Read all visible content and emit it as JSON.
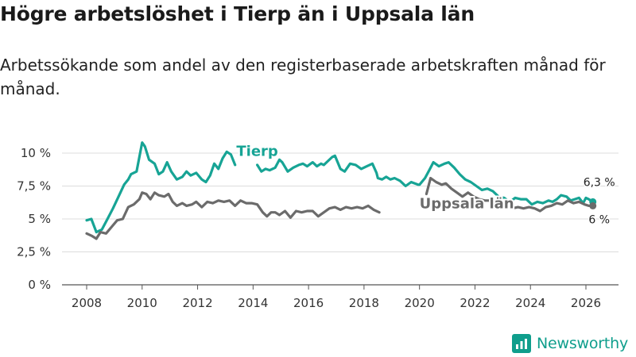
{
  "title": "Högre arbetslöshet i Tierp än i Uppsala län",
  "subtitle": "Arbetssökande som andel av den registerbaserade arbetskraften månad för månad.",
  "brand": {
    "name": "Newsworthy",
    "color": "#0f9e8c"
  },
  "chart_data": {
    "type": "line",
    "title": "Högre arbetslöshet i Tierp än i Uppsala län",
    "xlabel": "",
    "ylabel": "",
    "xlim": [
      2007.6,
      2026.7
    ],
    "ylim": [
      0,
      10.5
    ],
    "grid": true,
    "y_ticks": [
      {
        "value": 0,
        "label": "0 %"
      },
      {
        "value": 2.5,
        "label": "2,5 %"
      },
      {
        "value": 5,
        "label": "5 %"
      },
      {
        "value": 7.5,
        "label": "7,5 %"
      },
      {
        "value": 10,
        "label": "10 %"
      }
    ],
    "x_ticks": [
      {
        "value": 2008,
        "label": "2008"
      },
      {
        "value": 2010,
        "label": "2010"
      },
      {
        "value": 2012,
        "label": "2012"
      },
      {
        "value": 2014,
        "label": "2014"
      },
      {
        "value": 2016,
        "label": "2016"
      },
      {
        "value": 2018,
        "label": "2018"
      },
      {
        "value": 2020,
        "label": "2020"
      },
      {
        "value": 2022,
        "label": "2022"
      },
      {
        "value": 2024,
        "label": "2024"
      },
      {
        "value": 2026,
        "label": "2026"
      }
    ],
    "series": [
      {
        "name": "Tierp",
        "color": "#17a495",
        "label_year": 2013.4,
        "label_value": 9.8,
        "end_label": "6,3 %",
        "end_value": 6.3,
        "points": [
          [
            2008.0,
            4.9
          ],
          [
            2008.17,
            5.0
          ],
          [
            2008.35,
            4.0
          ],
          [
            2008.55,
            4.2
          ],
          [
            2008.75,
            5.0
          ],
          [
            2008.95,
            5.8
          ],
          [
            2009.15,
            6.7
          ],
          [
            2009.35,
            7.6
          ],
          [
            2009.5,
            8.0
          ],
          [
            2009.6,
            8.4
          ],
          [
            2009.8,
            8.6
          ],
          [
            2010.0,
            10.8
          ],
          [
            2010.1,
            10.5
          ],
          [
            2010.25,
            9.5
          ],
          [
            2010.45,
            9.2
          ],
          [
            2010.6,
            8.4
          ],
          [
            2010.75,
            8.6
          ],
          [
            2010.9,
            9.3
          ],
          [
            2011.05,
            8.6
          ],
          [
            2011.25,
            8.0
          ],
          [
            2011.45,
            8.2
          ],
          [
            2011.6,
            8.6
          ],
          [
            2011.75,
            8.3
          ],
          [
            2011.95,
            8.5
          ],
          [
            2012.15,
            8.0
          ],
          [
            2012.3,
            7.8
          ],
          [
            2012.45,
            8.3
          ],
          [
            2012.6,
            9.2
          ],
          [
            2012.75,
            8.8
          ],
          [
            2012.9,
            9.6
          ],
          [
            2013.05,
            10.1
          ],
          [
            2013.2,
            9.9
          ],
          [
            2013.35,
            9.1
          ],
          [
            2014.15,
            9.1
          ],
          [
            2014.3,
            8.6
          ],
          [
            2014.45,
            8.8
          ],
          [
            2014.6,
            8.7
          ],
          [
            2014.8,
            8.9
          ],
          [
            2014.95,
            9.5
          ],
          [
            2015.05,
            9.3
          ],
          [
            2015.25,
            8.6
          ],
          [
            2015.45,
            8.9
          ],
          [
            2015.65,
            9.1
          ],
          [
            2015.8,
            9.2
          ],
          [
            2015.95,
            9.0
          ],
          [
            2016.15,
            9.3
          ],
          [
            2016.3,
            9.0
          ],
          [
            2016.45,
            9.2
          ],
          [
            2016.55,
            9.1
          ],
          [
            2016.7,
            9.4
          ],
          [
            2016.85,
            9.7
          ],
          [
            2016.95,
            9.8
          ],
          [
            2017.15,
            8.8
          ],
          [
            2017.3,
            8.6
          ],
          [
            2017.5,
            9.2
          ],
          [
            2017.7,
            9.1
          ],
          [
            2017.9,
            8.8
          ],
          [
            2018.1,
            9.0
          ],
          [
            2018.3,
            9.2
          ],
          [
            2018.45,
            8.5
          ],
          [
            2018.5,
            8.1
          ],
          [
            2018.65,
            8.0
          ],
          [
            2018.8,
            8.2
          ],
          [
            2018.95,
            8.0
          ],
          [
            2019.1,
            8.1
          ],
          [
            2019.3,
            7.9
          ],
          [
            2019.5,
            7.5
          ],
          [
            2019.7,
            7.8
          ],
          [
            2019.95,
            7.6
          ],
          [
            2020.0,
            7.6
          ],
          [
            2020.2,
            8.1
          ],
          [
            2020.35,
            8.7
          ],
          [
            2020.5,
            9.3
          ],
          [
            2020.7,
            9.0
          ],
          [
            2020.9,
            9.2
          ],
          [
            2021.05,
            9.3
          ],
          [
            2021.25,
            8.9
          ],
          [
            2021.45,
            8.4
          ],
          [
            2021.65,
            8.0
          ],
          [
            2021.85,
            7.8
          ],
          [
            2022.05,
            7.5
          ],
          [
            2022.25,
            7.2
          ],
          [
            2022.45,
            7.3
          ],
          [
            2022.65,
            7.1
          ],
          [
            2022.85,
            6.7
          ],
          [
            2023.05,
            6.6
          ],
          [
            2023.25,
            6.3
          ],
          [
            2023.45,
            6.6
          ],
          [
            2023.65,
            6.5
          ],
          [
            2023.85,
            6.5
          ],
          [
            2024.05,
            6.1
          ],
          [
            2024.25,
            6.3
          ],
          [
            2024.45,
            6.2
          ],
          [
            2024.65,
            6.4
          ],
          [
            2024.8,
            6.3
          ],
          [
            2024.95,
            6.5
          ],
          [
            2025.1,
            6.8
          ],
          [
            2025.3,
            6.7
          ],
          [
            2025.45,
            6.4
          ],
          [
            2025.6,
            6.5
          ],
          [
            2025.75,
            6.6
          ],
          [
            2025.9,
            6.2
          ],
          [
            2026.0,
            6.6
          ],
          [
            2026.1,
            6.5
          ],
          [
            2026.25,
            6.3
          ]
        ]
      },
      {
        "name": "Uppsala län",
        "color": "#6b6b6b",
        "label_year": 2020.0,
        "label_value": 5.8,
        "end_label": "6 %",
        "end_value": 6.0,
        "points": [
          [
            2008.0,
            3.9
          ],
          [
            2008.2,
            3.7
          ],
          [
            2008.35,
            3.5
          ],
          [
            2008.5,
            4.0
          ],
          [
            2008.7,
            3.9
          ],
          [
            2008.9,
            4.4
          ],
          [
            2009.1,
            4.9
          ],
          [
            2009.3,
            5.0
          ],
          [
            2009.5,
            5.9
          ],
          [
            2009.7,
            6.1
          ],
          [
            2009.9,
            6.5
          ],
          [
            2010.0,
            7.0
          ],
          [
            2010.15,
            6.9
          ],
          [
            2010.3,
            6.5
          ],
          [
            2010.45,
            7.0
          ],
          [
            2010.6,
            6.8
          ],
          [
            2010.8,
            6.7
          ],
          [
            2010.95,
            6.9
          ],
          [
            2011.1,
            6.3
          ],
          [
            2011.25,
            6.0
          ],
          [
            2011.45,
            6.2
          ],
          [
            2011.6,
            6.0
          ],
          [
            2011.8,
            6.1
          ],
          [
            2011.95,
            6.3
          ],
          [
            2012.15,
            5.9
          ],
          [
            2012.35,
            6.3
          ],
          [
            2012.55,
            6.2
          ],
          [
            2012.75,
            6.4
          ],
          [
            2012.95,
            6.3
          ],
          [
            2013.15,
            6.4
          ],
          [
            2013.35,
            6.0
          ],
          [
            2013.55,
            6.4
          ],
          [
            2013.75,
            6.2
          ],
          [
            2013.95,
            6.2
          ],
          [
            2014.15,
            6.1
          ],
          [
            2014.35,
            5.5
          ],
          [
            2014.5,
            5.2
          ],
          [
            2014.65,
            5.5
          ],
          [
            2014.8,
            5.5
          ],
          [
            2014.95,
            5.3
          ],
          [
            2015.15,
            5.6
          ],
          [
            2015.35,
            5.1
          ],
          [
            2015.55,
            5.6
          ],
          [
            2015.75,
            5.5
          ],
          [
            2015.95,
            5.6
          ],
          [
            2016.15,
            5.6
          ],
          [
            2016.35,
            5.2
          ],
          [
            2016.55,
            5.5
          ],
          [
            2016.75,
            5.8
          ],
          [
            2016.95,
            5.9
          ],
          [
            2017.15,
            5.7
          ],
          [
            2017.35,
            5.9
          ],
          [
            2017.55,
            5.8
          ],
          [
            2017.75,
            5.9
          ],
          [
            2017.95,
            5.8
          ],
          [
            2018.15,
            6.0
          ],
          [
            2018.35,
            5.7
          ],
          [
            2018.55,
            5.5
          ],
          [
            2020.25,
            6.9
          ],
          [
            2020.4,
            8.1
          ],
          [
            2020.6,
            7.8
          ],
          [
            2020.8,
            7.6
          ],
          [
            2020.95,
            7.7
          ],
          [
            2021.15,
            7.3
          ],
          [
            2021.35,
            7.0
          ],
          [
            2021.55,
            6.7
          ],
          [
            2021.75,
            7.0
          ],
          [
            2021.95,
            6.7
          ],
          [
            2022.15,
            6.5
          ],
          [
            2022.35,
            6.4
          ],
          [
            2022.55,
            6.4
          ],
          [
            2022.75,
            6.2
          ],
          [
            2022.95,
            6.1
          ],
          [
            2023.15,
            6.2
          ],
          [
            2023.35,
            5.8
          ],
          [
            2023.55,
            5.9
          ],
          [
            2023.75,
            5.8
          ],
          [
            2023.95,
            5.9
          ],
          [
            2024.15,
            5.8
          ],
          [
            2024.35,
            5.6
          ],
          [
            2024.55,
            5.9
          ],
          [
            2024.75,
            6.0
          ],
          [
            2024.95,
            6.2
          ],
          [
            2025.15,
            6.1
          ],
          [
            2025.35,
            6.4
          ],
          [
            2025.55,
            6.2
          ],
          [
            2025.75,
            6.3
          ],
          [
            2025.95,
            6.1
          ],
          [
            2026.1,
            6.0
          ],
          [
            2026.25,
            6.0
          ]
        ]
      }
    ]
  }
}
